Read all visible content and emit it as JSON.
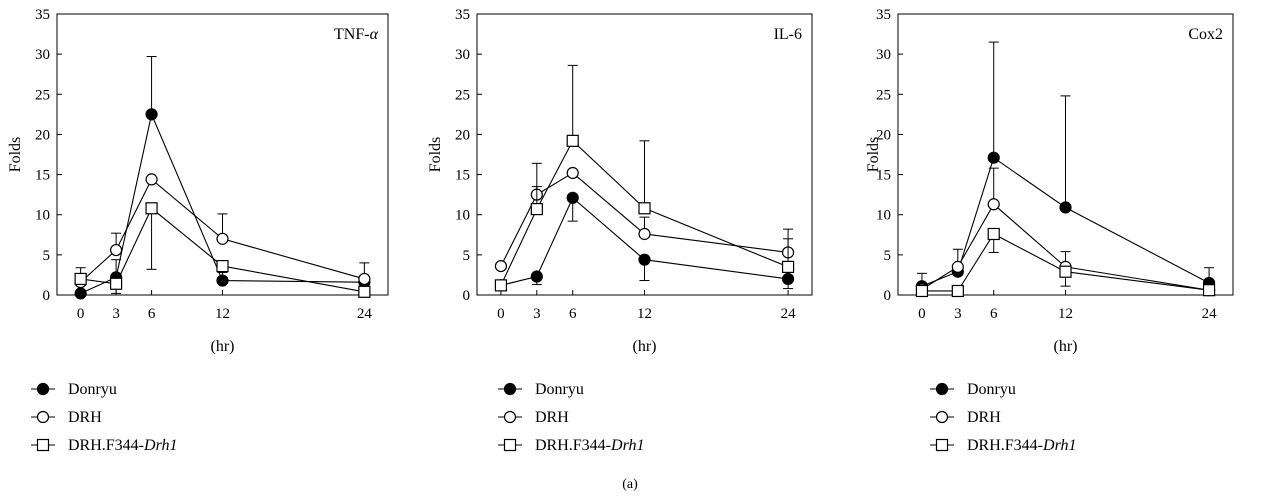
{
  "figure_label": "(a)",
  "colors": {
    "ink": "#000000",
    "background": "#ffffff"
  },
  "series_styles": [
    {
      "name": "Donryu",
      "marker": "circle-filled"
    },
    {
      "name": "DRH",
      "marker": "circle-open"
    },
    {
      "name_prefix": "DRH.F344-",
      "name_italic": "Drh1",
      "marker": "square-open"
    }
  ],
  "chart_data": [
    {
      "type": "line",
      "title": "TNF-α",
      "title_prefix": "TNF-",
      "title_italic": "α",
      "ylabel": "Folds",
      "xlabel": "(hr)",
      "x": [
        0,
        3,
        6,
        12,
        24
      ],
      "xticks": [
        "0",
        "3",
        "6",
        "12",
        "24"
      ],
      "xlim": [
        -2,
        26
      ],
      "ylim": [
        0,
        35
      ],
      "yticks": [
        "0",
        "5",
        "10",
        "15",
        "20",
        "25",
        "30",
        "35"
      ],
      "grid": false,
      "legend_position": "below",
      "series": [
        {
          "name": "Donryu",
          "marker": "circle-filled",
          "values": [
            0.2,
            2.2,
            22.5,
            1.8,
            1.6
          ],
          "err_up": [
            0,
            2.2,
            7.2,
            1.0,
            0
          ],
          "err_down": [
            0,
            2.0,
            0,
            0,
            0
          ]
        },
        {
          "name": "DRH",
          "marker": "circle-open",
          "values": [
            1.6,
            5.6,
            14.4,
            7.0,
            2.0
          ],
          "err_up": [
            1.8,
            2.1,
            0,
            3.1,
            2.0
          ],
          "err_down": [
            0,
            0,
            0,
            0,
            0
          ]
        },
        {
          "name": "DRH.F344-Drh1",
          "marker": "square-open",
          "values": [
            2.0,
            1.4,
            10.8,
            3.6,
            0.4
          ],
          "err_up": [
            0,
            0,
            0,
            0,
            0
          ],
          "err_down": [
            0,
            0,
            7.6,
            0,
            0
          ]
        }
      ]
    },
    {
      "type": "line",
      "title": "IL-6",
      "title_prefix": "IL-6",
      "title_italic": "",
      "ylabel": "Folds",
      "xlabel": "(hr)",
      "x": [
        0,
        3,
        6,
        12,
        24
      ],
      "xticks": [
        "0",
        "3",
        "6",
        "12",
        "24"
      ],
      "xlim": [
        -2,
        26
      ],
      "ylim": [
        0,
        35
      ],
      "yticks": [
        "0",
        "5",
        "10",
        "15",
        "20",
        "25",
        "30",
        "35"
      ],
      "grid": false,
      "legend_position": "below",
      "series": [
        {
          "name": "Donryu",
          "marker": "circle-filled",
          "values": [
            1.2,
            2.3,
            12.1,
            4.4,
            2.0
          ],
          "err_up": [
            0,
            0,
            0,
            0,
            0
          ],
          "err_down": [
            0,
            1.0,
            2.9,
            2.6,
            1.2
          ]
        },
        {
          "name": "DRH",
          "marker": "circle-open",
          "values": [
            3.6,
            12.5,
            15.2,
            7.6,
            5.3
          ],
          "err_up": [
            0,
            1.0,
            0,
            2.1,
            2.9
          ],
          "err_down": [
            0,
            0,
            0,
            0,
            0
          ]
        },
        {
          "name": "DRH.F344-Drh1",
          "marker": "square-open",
          "values": [
            1.2,
            10.7,
            19.2,
            10.8,
            3.5
          ],
          "err_up": [
            0,
            5.7,
            9.4,
            8.4,
            3.5
          ],
          "err_down": [
            0,
            0,
            0,
            0,
            0
          ]
        }
      ]
    },
    {
      "type": "line",
      "title": "Cox2",
      "title_prefix": "Cox2",
      "title_italic": "",
      "ylabel": "Folds",
      "xlabel": "(hr)",
      "x": [
        0,
        3,
        6,
        12,
        24
      ],
      "xticks": [
        "0",
        "3",
        "6",
        "12",
        "24"
      ],
      "xlim": [
        -2,
        26
      ],
      "ylim": [
        0,
        35
      ],
      "yticks": [
        "0",
        "5",
        "10",
        "15",
        "20",
        "25",
        "30",
        "35"
      ],
      "grid": false,
      "legend_position": "below",
      "series": [
        {
          "name": "Donryu",
          "marker": "circle-filled",
          "values": [
            1.1,
            2.9,
            17.1,
            10.9,
            1.5
          ],
          "err_up": [
            1.6,
            2.8,
            14.4,
            13.9,
            1.9
          ],
          "err_down": [
            0,
            0,
            0,
            0,
            0
          ]
        },
        {
          "name": "DRH",
          "marker": "circle-open",
          "values": [
            0.7,
            3.5,
            11.3,
            3.5,
            0.6
          ],
          "err_up": [
            0,
            0,
            4.5,
            1.9,
            0
          ],
          "err_down": [
            0,
            0,
            0,
            0,
            0
          ]
        },
        {
          "name": "DRH.F344-Drh1",
          "marker": "square-open",
          "values": [
            0.5,
            0.5,
            7.6,
            2.9,
            0.6
          ],
          "err_up": [
            0,
            0,
            0,
            0,
            0
          ],
          "err_down": [
            0,
            0,
            2.3,
            1.8,
            0
          ]
        }
      ]
    }
  ]
}
